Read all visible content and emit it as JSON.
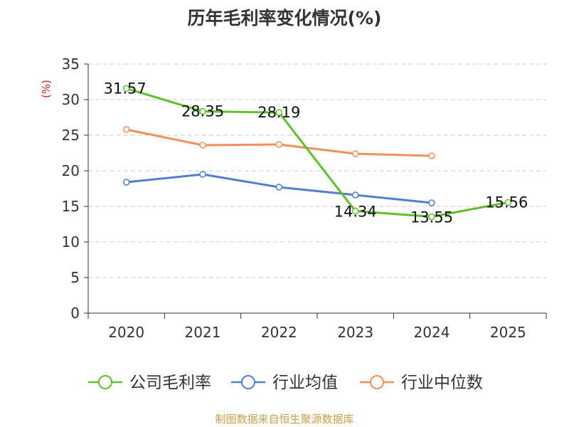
{
  "chart_data": {
    "type": "line",
    "title": "历年毛利率变化情况(%)",
    "ylabel": "(%)",
    "xlabel": "",
    "ylim": [
      0,
      35
    ],
    "yticks": [
      0,
      5,
      10,
      15,
      20,
      25,
      30,
      35
    ],
    "categories": [
      "2020",
      "2021",
      "2022",
      "2023",
      "2024",
      "2025"
    ],
    "grid": true,
    "legend_position": "bottom",
    "series": [
      {
        "name": "公司毛利率",
        "color": "#5ec12a",
        "values": [
          31.57,
          28.35,
          28.19,
          14.34,
          13.55,
          15.56
        ],
        "labels": [
          "31.57",
          "28.35",
          "28.19",
          "14.34",
          "13.55",
          "15.56"
        ]
      },
      {
        "name": "行业均值",
        "color": "#4f7fd6",
        "values": [
          18.4,
          19.5,
          17.7,
          16.6,
          15.5,
          null
        ]
      },
      {
        "name": "行业中位数",
        "color": "#f28f5b",
        "values": [
          25.8,
          23.6,
          23.7,
          22.4,
          22.1,
          null
        ]
      }
    ]
  },
  "footer": "制图数据来自恒生聚源数据库"
}
